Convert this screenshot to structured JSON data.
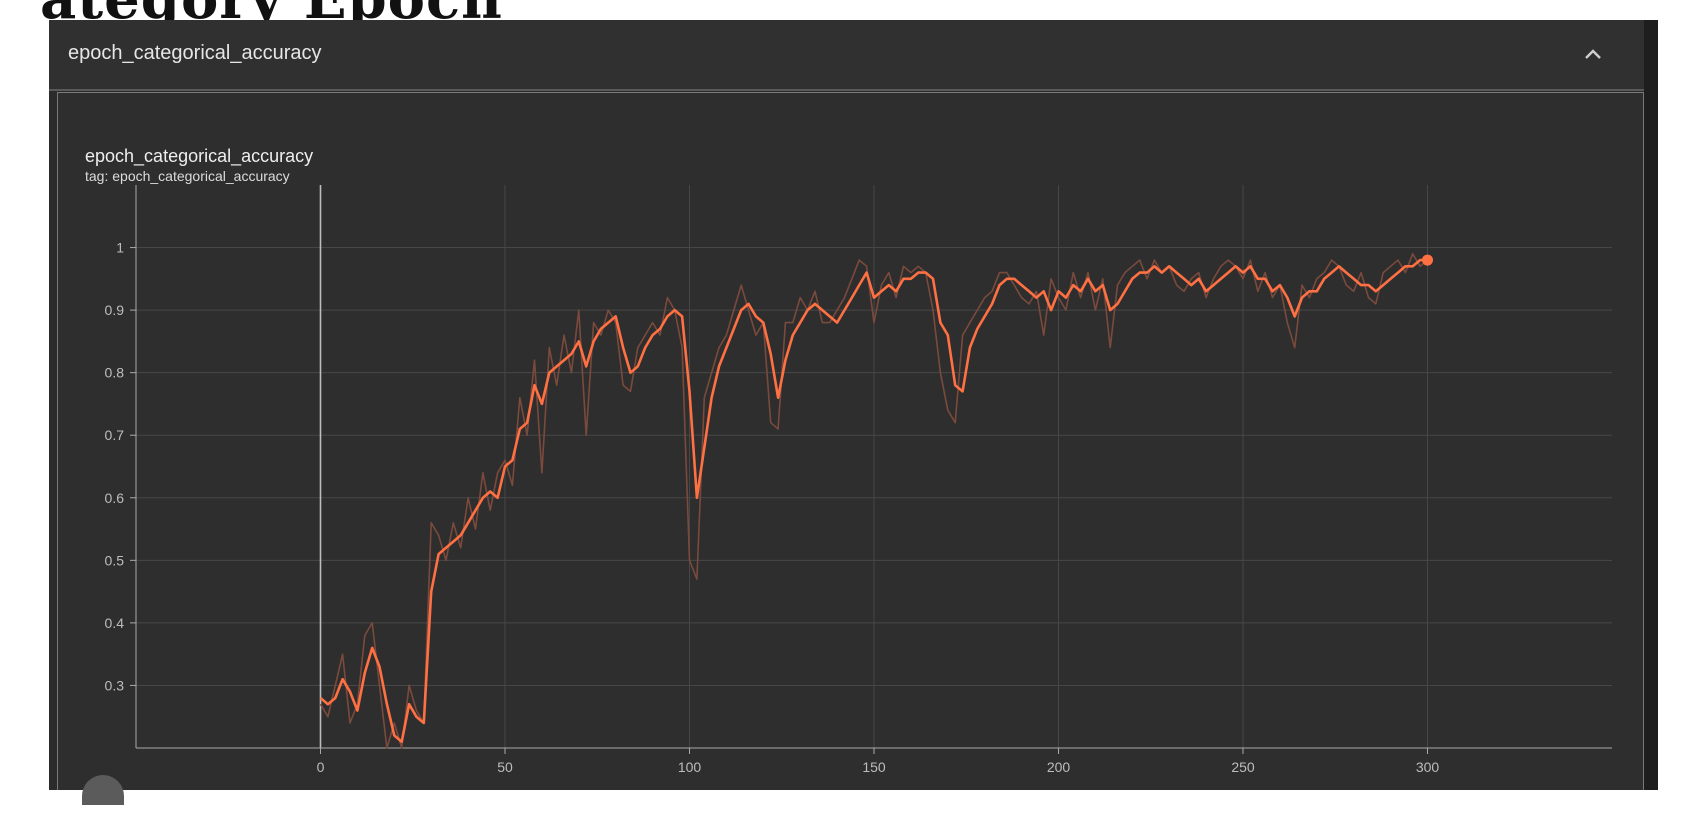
{
  "header_fragment": "ategory Epoch",
  "panel": {
    "title": "epoch_categorical_accuracy",
    "collapse_icon": "chevron-up-icon"
  },
  "card": {
    "title": "epoch_categorical_accuracy",
    "tag": "tag: epoch_categorical_accuracy"
  },
  "colors": {
    "line": "#ff7043",
    "raw_line": "#7a4a3c",
    "background": "#2e2e2e",
    "grid": "#474747"
  },
  "chart_data": {
    "type": "line",
    "title": "epoch_categorical_accuracy",
    "xlabel": "",
    "ylabel": "",
    "xlim": [
      -50,
      350
    ],
    "ylim": [
      0.2,
      1.1
    ],
    "x_ticks": [
      0,
      50,
      100,
      150,
      200,
      250,
      300
    ],
    "y_ticks": [
      0.3,
      0.4,
      0.5,
      0.6,
      0.7,
      0.8,
      0.9,
      1
    ],
    "grid": true,
    "series": [
      {
        "style": "smoothed",
        "x": [
          0,
          2,
          4,
          6,
          8,
          10,
          12,
          14,
          16,
          18,
          20,
          22,
          24,
          26,
          28,
          30,
          32,
          34,
          36,
          38,
          40,
          42,
          44,
          46,
          48,
          50,
          52,
          54,
          56,
          58,
          60,
          62,
          64,
          66,
          68,
          70,
          72,
          74,
          76,
          78,
          80,
          82,
          84,
          86,
          88,
          90,
          92,
          94,
          96,
          98,
          100,
          102,
          104,
          106,
          108,
          110,
          112,
          114,
          116,
          118,
          120,
          122,
          124,
          126,
          128,
          130,
          132,
          134,
          136,
          138,
          140,
          142,
          144,
          146,
          148,
          150,
          152,
          154,
          156,
          158,
          160,
          162,
          164,
          166,
          168,
          170,
          172,
          174,
          176,
          178,
          180,
          182,
          184,
          186,
          188,
          190,
          192,
          194,
          196,
          198,
          200,
          202,
          204,
          206,
          208,
          210,
          212,
          214,
          216,
          218,
          220,
          222,
          224,
          226,
          228,
          230,
          232,
          234,
          236,
          238,
          240,
          242,
          244,
          246,
          248,
          250,
          252,
          254,
          256,
          258,
          260,
          262,
          264,
          266,
          268,
          270,
          272,
          274,
          276,
          278,
          280,
          282,
          284,
          286,
          288,
          290,
          292,
          294,
          296,
          298,
          300
        ],
        "y": [
          0.28,
          0.27,
          0.28,
          0.31,
          0.29,
          0.26,
          0.32,
          0.36,
          0.33,
          0.27,
          0.22,
          0.21,
          0.27,
          0.25,
          0.24,
          0.45,
          0.51,
          0.52,
          0.53,
          0.54,
          0.56,
          0.58,
          0.6,
          0.61,
          0.6,
          0.65,
          0.66,
          0.71,
          0.72,
          0.78,
          0.75,
          0.8,
          0.81,
          0.82,
          0.83,
          0.85,
          0.81,
          0.85,
          0.87,
          0.88,
          0.89,
          0.84,
          0.8,
          0.81,
          0.84,
          0.86,
          0.87,
          0.89,
          0.9,
          0.89,
          0.77,
          0.6,
          0.68,
          0.76,
          0.81,
          0.84,
          0.87,
          0.9,
          0.91,
          0.89,
          0.88,
          0.83,
          0.76,
          0.82,
          0.86,
          0.88,
          0.9,
          0.91,
          0.9,
          0.89,
          0.88,
          0.9,
          0.92,
          0.94,
          0.96,
          0.92,
          0.93,
          0.94,
          0.93,
          0.95,
          0.95,
          0.96,
          0.96,
          0.95,
          0.88,
          0.86,
          0.78,
          0.77,
          0.84,
          0.87,
          0.89,
          0.91,
          0.94,
          0.95,
          0.95,
          0.94,
          0.93,
          0.92,
          0.93,
          0.9,
          0.93,
          0.92,
          0.94,
          0.93,
          0.95,
          0.93,
          0.94,
          0.9,
          0.91,
          0.93,
          0.95,
          0.96,
          0.96,
          0.97,
          0.96,
          0.97,
          0.96,
          0.95,
          0.94,
          0.95,
          0.93,
          0.94,
          0.95,
          0.96,
          0.97,
          0.96,
          0.97,
          0.95,
          0.95,
          0.93,
          0.94,
          0.92,
          0.89,
          0.92,
          0.93,
          0.93,
          0.95,
          0.96,
          0.97,
          0.96,
          0.95,
          0.94,
          0.94,
          0.93,
          0.94,
          0.95,
          0.96,
          0.97,
          0.97,
          0.98,
          0.98
        ]
      },
      {
        "style": "raw",
        "x": [
          0,
          2,
          4,
          6,
          8,
          10,
          12,
          14,
          16,
          18,
          20,
          22,
          24,
          26,
          28,
          30,
          32,
          34,
          36,
          38,
          40,
          42,
          44,
          46,
          48,
          50,
          52,
          54,
          56,
          58,
          60,
          62,
          64,
          66,
          68,
          70,
          72,
          74,
          76,
          78,
          80,
          82,
          84,
          86,
          88,
          90,
          92,
          94,
          96,
          98,
          100,
          102,
          104,
          106,
          108,
          110,
          112,
          114,
          116,
          118,
          120,
          122,
          124,
          126,
          128,
          130,
          132,
          134,
          136,
          138,
          140,
          142,
          144,
          146,
          148,
          150,
          152,
          154,
          156,
          158,
          160,
          162,
          164,
          166,
          168,
          170,
          172,
          174,
          176,
          178,
          180,
          182,
          184,
          186,
          188,
          190,
          192,
          194,
          196,
          198,
          200,
          202,
          204,
          206,
          208,
          210,
          212,
          214,
          216,
          218,
          220,
          222,
          224,
          226,
          228,
          230,
          232,
          234,
          236,
          238,
          240,
          242,
          244,
          246,
          248,
          250,
          252,
          254,
          256,
          258,
          260,
          262,
          264,
          266,
          268,
          270,
          272,
          274,
          276,
          278,
          280,
          282,
          284,
          286,
          288,
          290,
          292,
          294,
          296,
          298,
          300
        ],
        "y": [
          0.27,
          0.25,
          0.3,
          0.35,
          0.24,
          0.27,
          0.38,
          0.4,
          0.3,
          0.2,
          0.24,
          0.2,
          0.3,
          0.26,
          0.24,
          0.56,
          0.54,
          0.5,
          0.56,
          0.52,
          0.6,
          0.55,
          0.64,
          0.58,
          0.64,
          0.66,
          0.62,
          0.76,
          0.7,
          0.82,
          0.64,
          0.84,
          0.78,
          0.86,
          0.8,
          0.9,
          0.7,
          0.88,
          0.86,
          0.9,
          0.88,
          0.78,
          0.77,
          0.84,
          0.86,
          0.88,
          0.86,
          0.92,
          0.9,
          0.84,
          0.5,
          0.47,
          0.76,
          0.8,
          0.84,
          0.86,
          0.9,
          0.94,
          0.9,
          0.86,
          0.88,
          0.72,
          0.71,
          0.88,
          0.88,
          0.92,
          0.9,
          0.93,
          0.88,
          0.88,
          0.9,
          0.92,
          0.95,
          0.98,
          0.97,
          0.88,
          0.94,
          0.96,
          0.92,
          0.97,
          0.96,
          0.97,
          0.96,
          0.9,
          0.8,
          0.74,
          0.72,
          0.86,
          0.88,
          0.9,
          0.92,
          0.93,
          0.96,
          0.96,
          0.94,
          0.92,
          0.91,
          0.93,
          0.86,
          0.95,
          0.92,
          0.9,
          0.96,
          0.92,
          0.96,
          0.9,
          0.95,
          0.84,
          0.94,
          0.96,
          0.97,
          0.98,
          0.95,
          0.98,
          0.96,
          0.97,
          0.94,
          0.93,
          0.95,
          0.96,
          0.92,
          0.95,
          0.97,
          0.98,
          0.97,
          0.95,
          0.98,
          0.93,
          0.96,
          0.92,
          0.94,
          0.88,
          0.84,
          0.94,
          0.92,
          0.95,
          0.96,
          0.98,
          0.97,
          0.94,
          0.93,
          0.96,
          0.92,
          0.91,
          0.96,
          0.97,
          0.98,
          0.96,
          0.99,
          0.97,
          0.98
        ]
      }
    ]
  }
}
